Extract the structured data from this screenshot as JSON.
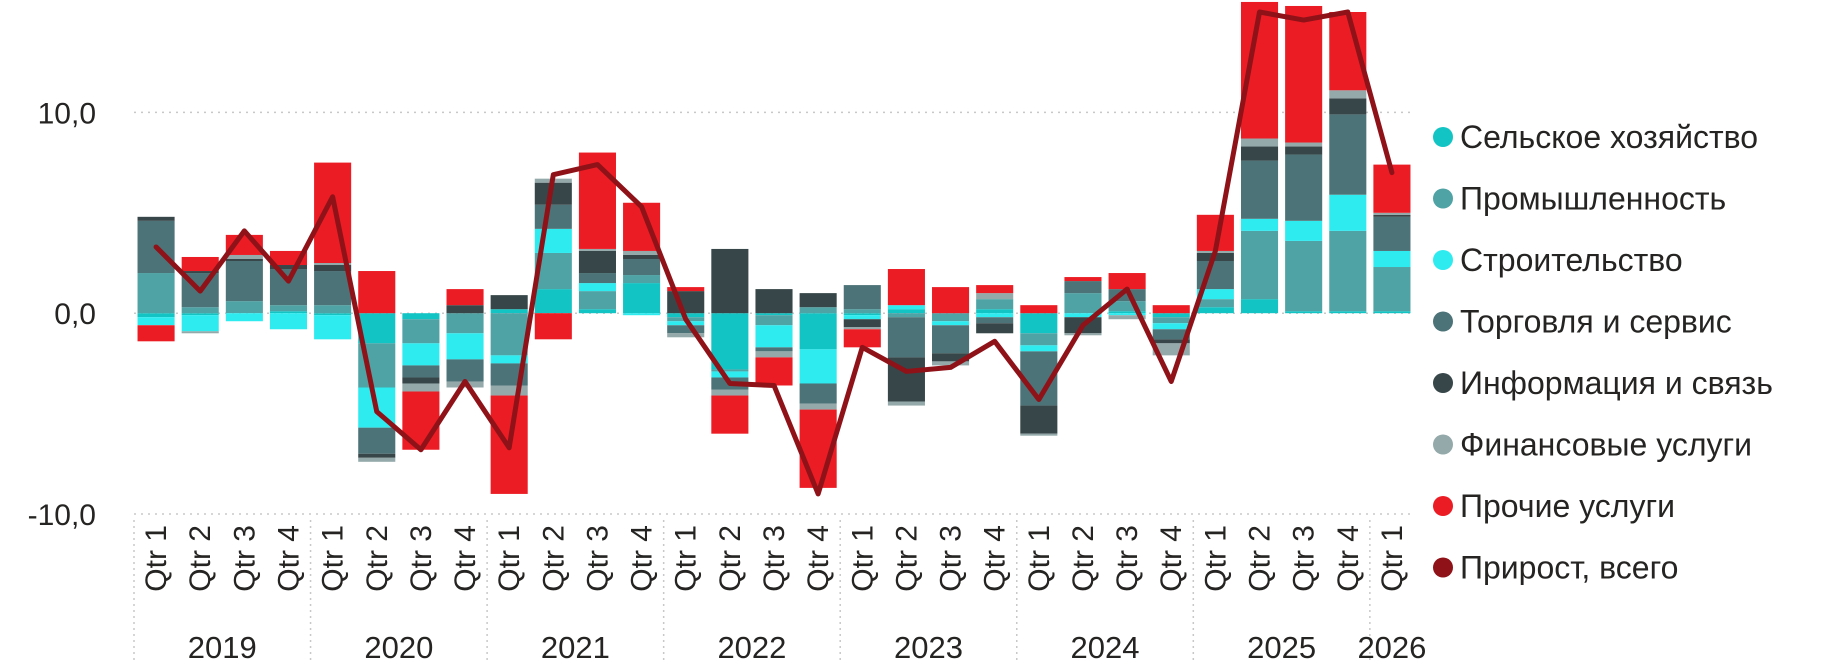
{
  "chart_data": {
    "type": "bar",
    "stacked": true,
    "title": "",
    "xlabel": "",
    "ylabel": "",
    "ylim": [
      -10,
      15
    ],
    "y_ticks": [
      {
        "value": -10,
        "label": "-10,0"
      },
      {
        "value": 0,
        "label": "0,0"
      },
      {
        "value": 10,
        "label": "10,0"
      }
    ],
    "grid": true,
    "legend_position": "right",
    "categories": [
      "Qtr 1",
      "Qtr 2",
      "Qtr 3",
      "Qtr 4",
      "Qtr 1",
      "Qtr 2",
      "Qtr 3",
      "Qtr 4",
      "Qtr 1",
      "Qtr 2",
      "Qtr 3",
      "Qtr 4",
      "Qtr 1",
      "Qtr 2",
      "Qtr 3",
      "Qtr 4",
      "Qtr 1",
      "Qtr 2",
      "Qtr 3",
      "Qtr 4",
      "Qtr 1",
      "Qtr 2",
      "Qtr 3",
      "Qtr 4",
      "Qtr 1",
      "Qtr 2",
      "Qtr 3",
      "Qtr 4",
      "Qtr 1"
    ],
    "years": [
      {
        "label": "2019",
        "count": 4
      },
      {
        "label": "2020",
        "count": 4
      },
      {
        "label": "2021",
        "count": 4
      },
      {
        "label": "2022",
        "count": 4
      },
      {
        "label": "2023",
        "count": 4
      },
      {
        "label": "2024",
        "count": 4
      },
      {
        "label": "2025",
        "count": 4
      },
      {
        "label": "2026",
        "count": 1
      }
    ],
    "series": [
      {
        "name": "Сельское хозяйство",
        "color": "#13C4C4",
        "values": [
          -0.2,
          -0.1,
          0.0,
          0.1,
          -0.1,
          -1.5,
          -0.3,
          0.0,
          0.2,
          1.2,
          0.2,
          1.5,
          -0.2,
          -2.8,
          -0.1,
          -1.8,
          -0.1,
          0.2,
          0.0,
          0.2,
          -1.0,
          0.0,
          0.1,
          -0.2,
          0.3,
          0.7,
          0.1,
          0.1,
          0.1
        ]
      },
      {
        "name": "Промышленность",
        "color": "#4FA3A5",
        "values": [
          2.0,
          0.3,
          0.6,
          0.3,
          0.4,
          -2.2,
          -1.2,
          -1.0,
          -2.1,
          1.8,
          0.9,
          0.4,
          -0.2,
          -0.1,
          -0.5,
          0.3,
          0.2,
          -0.2,
          -0.4,
          0.5,
          -0.6,
          1.0,
          0.5,
          -0.3,
          0.4,
          3.4,
          3.5,
          4.0,
          2.2
        ]
      },
      {
        "name": "Строительство",
        "color": "#2EEBF0",
        "values": [
          -0.4,
          -0.8,
          -0.4,
          -0.8,
          -1.2,
          -2.0,
          -1.1,
          -1.3,
          -0.4,
          1.2,
          0.4,
          -0.1,
          -0.2,
          -0.3,
          -1.1,
          -1.7,
          -0.2,
          0.2,
          -0.2,
          -0.2,
          -0.3,
          -0.2,
          -0.1,
          -0.3,
          0.5,
          0.6,
          1.0,
          1.8,
          0.8
        ]
      },
      {
        "name": "Торговля и сервис",
        "color": "#4C7378",
        "values": [
          2.6,
          1.7,
          2.0,
          1.8,
          1.7,
          -1.3,
          -0.6,
          -1.1,
          -1.1,
          1.2,
          0.5,
          0.8,
          -0.4,
          -0.6,
          -0.2,
          -1.0,
          1.2,
          -2.0,
          -1.4,
          -0.3,
          -2.7,
          0.6,
          0.6,
          -0.5,
          1.4,
          2.9,
          3.3,
          4.0,
          1.7
        ]
      },
      {
        "name": "Информация и связь",
        "color": "#374649",
        "values": [
          0.2,
          0.1,
          0.1,
          0.2,
          0.3,
          -0.2,
          -0.3,
          0.4,
          0.7,
          1.1,
          1.1,
          0.2,
          1.1,
          3.2,
          1.2,
          0.7,
          -0.4,
          -2.2,
          -0.4,
          -0.5,
          -1.4,
          -0.8,
          0.0,
          -0.2,
          0.4,
          0.7,
          0.4,
          0.8,
          0.1
        ]
      },
      {
        "name": "Финансовые услуги",
        "color": "#93A9AA",
        "values": [
          0.0,
          -0.1,
          0.2,
          0.0,
          0.1,
          -0.2,
          -0.4,
          -0.3,
          -0.5,
          0.2,
          0.1,
          0.2,
          -0.2,
          -0.3,
          -0.3,
          -0.3,
          -0.1,
          -0.2,
          -0.2,
          0.3,
          -0.1,
          -0.1,
          -0.2,
          -0.6,
          0.1,
          0.4,
          0.2,
          0.4,
          0.1
        ]
      },
      {
        "name": "Прочие услуги",
        "color": "#EC1C24",
        "values": [
          -0.8,
          0.7,
          1.0,
          0.7,
          5.0,
          2.1,
          -2.9,
          0.8,
          -4.9,
          -1.3,
          4.8,
          2.4,
          0.2,
          -1.9,
          -1.4,
          -3.9,
          -0.9,
          1.8,
          1.3,
          0.4,
          0.4,
          0.2,
          0.8,
          0.4,
          1.8,
          6.8,
          6.8,
          3.9,
          2.4
        ]
      }
    ],
    "total_line": {
      "name": "Прирост, всего",
      "color": "#8F1219",
      "values": [
        3.3,
        1.1,
        4.1,
        1.6,
        5.8,
        -4.9,
        -6.8,
        -3.4,
        -6.7,
        6.9,
        7.4,
        5.3,
        -0.3,
        -3.5,
        -3.6,
        -9.0,
        -1.7,
        -2.9,
        -2.7,
        -1.4,
        -4.3,
        -0.6,
        1.2,
        -3.4,
        3.1,
        15.0,
        14.6,
        15.0,
        7.0
      ]
    }
  }
}
